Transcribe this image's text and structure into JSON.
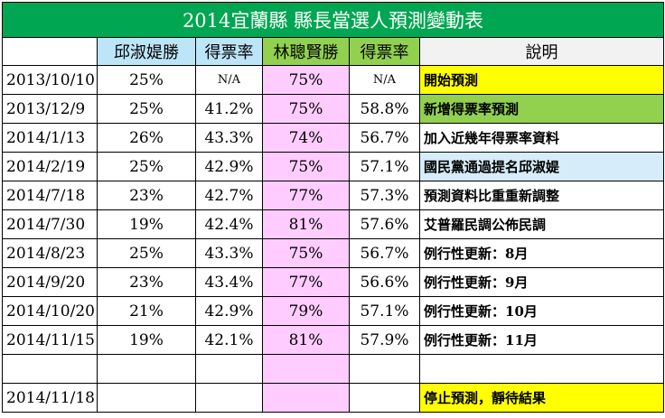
{
  "title": "2014宜蘭縣 縣長當選人預測變動表",
  "headers": {
    "date": "",
    "candidate_a": "邱淑媞勝",
    "rate_a": "得票率",
    "candidate_b": "林聰賢勝",
    "rate_b": "得票率",
    "notes": "說明"
  },
  "rows": [
    {
      "date": "2013/10/10",
      "a": "25%",
      "ra": "N/A",
      "b": "75%",
      "rb": "N/A",
      "note": "開始預測",
      "note_color": "#ffff00"
    },
    {
      "date": "2013/12/9",
      "a": "25%",
      "ra": "41.2%",
      "b": "75%",
      "rb": "58.8%",
      "note": "新增得票率預測",
      "note_color": "#92d050"
    },
    {
      "date": "2014/1/13",
      "a": "26%",
      "ra": "43.3%",
      "b": "74%",
      "rb": "56.7%",
      "note": "加入近幾年得票率資料",
      "note_color": "#ffffff"
    },
    {
      "date": "2014/2/19",
      "a": "25%",
      "ra": "42.9%",
      "b": "75%",
      "rb": "57.1%",
      "note": "國民黨通過提名邱淑媞",
      "note_color": "#d6ecf8"
    },
    {
      "date": "2014/7/18",
      "a": "23%",
      "ra": "42.7%",
      "b": "77%",
      "rb": "57.3%",
      "note": "預測資料比重重新調整",
      "note_color": "#ffffff"
    },
    {
      "date": "2014/7/30",
      "a": "19%",
      "ra": "42.4%",
      "b": "81%",
      "rb": "57.6%",
      "note": "艾普羅民調公佈民調",
      "note_color": "#ffffff"
    },
    {
      "date": "2014/8/23",
      "a": "25%",
      "ra": "43.3%",
      "b": "75%",
      "rb": "56.7%",
      "note": "例行性更新：8月",
      "note_color": "#ffffff"
    },
    {
      "date": "2014/9/20",
      "a": "23%",
      "ra": "43.4%",
      "b": "77%",
      "rb": "56.6%",
      "note": "例行性更新：9月",
      "note_color": "#ffffff"
    },
    {
      "date": "2014/10/20",
      "a": "21%",
      "ra": "42.9%",
      "b": "79%",
      "rb": "57.1%",
      "note": "例行性更新：10月",
      "note_color": "#ffffff"
    },
    {
      "date": "2014/11/15",
      "a": "19%",
      "ra": "42.1%",
      "b": "81%",
      "rb": "57.9%",
      "note": "例行性更新：11月",
      "note_color": "#ffffff"
    },
    {
      "date": "",
      "a": "",
      "ra": "",
      "b": "",
      "rb": "",
      "note": "",
      "note_color": "#ffffff"
    },
    {
      "date": "2014/11/18",
      "a": "",
      "ra": "",
      "b": "",
      "rb": "",
      "note": "停止預測，靜待結果",
      "note_color": "#ffff00"
    }
  ],
  "colors": {
    "title_bg": "#00a651",
    "candidate_a_bg": "#bde5f8",
    "candidate_b_bg": "#92d050",
    "candidate_b_column": "#ffccff"
  }
}
